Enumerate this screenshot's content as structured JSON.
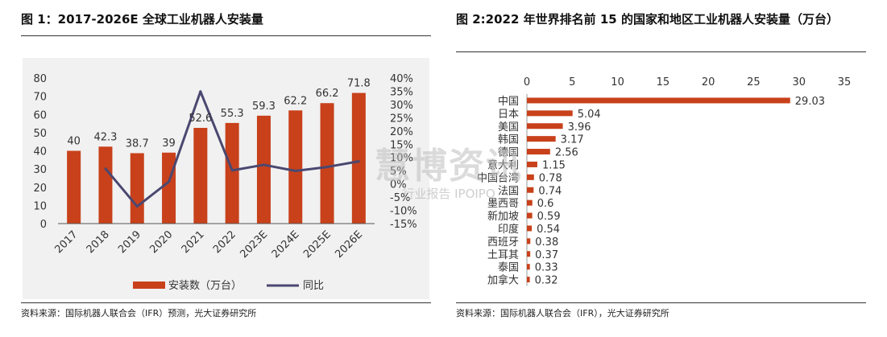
{
  "figure1": {
    "title": "图 1：2017-2026E 全球工业机器人安装量",
    "source": "资料来源：国际机器人联合会（IFR）预测，光大证券研究所",
    "chart_data": {
      "type": "bar",
      "categories": [
        "2017",
        "2018",
        "2019",
        "2020",
        "2021",
        "2022",
        "2023E",
        "2024E",
        "2025E",
        "2026E"
      ],
      "series": [
        {
          "name": "安装数（万台）",
          "type": "bar",
          "axis": "left",
          "color": "#c8411b",
          "values": [
            40,
            42.3,
            38.7,
            39,
            52.6,
            55.3,
            59.3,
            62.2,
            66.2,
            71.8
          ]
        },
        {
          "name": "同比",
          "type": "line",
          "axis": "right",
          "color": "#4a4870",
          "values": [
            null,
            5.75,
            -8.5,
            0.8,
            34.9,
            5.1,
            7.2,
            4.9,
            6.4,
            8.5
          ]
        }
      ],
      "data_labels": [
        "40",
        "42.3",
        "38.7",
        "39",
        "52.6",
        "55.3",
        "59.3",
        "62.2",
        "66.2",
        "71.8"
      ],
      "ylim_left": [
        0,
        80
      ],
      "yticks_left": [
        "0",
        "10",
        "20",
        "30",
        "40",
        "50",
        "60",
        "70",
        "80"
      ],
      "ylim_right": [
        -15,
        40
      ],
      "yticks_right": [
        "-15%",
        "-10%",
        "-5%",
        "0%",
        "5%",
        "10%",
        "15%",
        "20%",
        "25%",
        "30%",
        "35%",
        "40%"
      ],
      "legend_position": "bottom",
      "grid": false
    }
  },
  "figure2": {
    "title": "图 2:2022 年世界排名前 15 的国家和地区工业机器人安装量（万台）",
    "source": "资料来源：国际机器人联合会（IFR），光大证券研究所",
    "chart_data": {
      "type": "bar",
      "orientation": "horizontal",
      "categories": [
        "中国",
        "日本",
        "美国",
        "韩国",
        "德国",
        "意大利",
        "中国台湾",
        "法国",
        "墨西哥",
        "新加坡",
        "印度",
        "西班牙",
        "土耳其",
        "泰国",
        "加拿大"
      ],
      "values": [
        29.03,
        5.04,
        3.96,
        3.17,
        2.56,
        1.15,
        0.78,
        0.74,
        0.6,
        0.59,
        0.54,
        0.38,
        0.37,
        0.33,
        0.32
      ],
      "data_labels": [
        "29.03",
        "5.04",
        "3.96",
        "3.17",
        "2.56",
        "1.15",
        "0.78",
        "0.74",
        "0.6",
        "0.59",
        "0.54",
        "0.38",
        "0.37",
        "0.33",
        "0.32"
      ],
      "xlim": [
        0,
        35
      ],
      "xticks": [
        "0",
        "5",
        "10",
        "15",
        "20",
        "25",
        "30",
        "35"
      ],
      "xaxis_position": "top",
      "bar_color": "#c8411b",
      "grid": false
    }
  },
  "watermark": {
    "main": "慧博资讯",
    "sub": "行业报告 IPOIPO"
  }
}
